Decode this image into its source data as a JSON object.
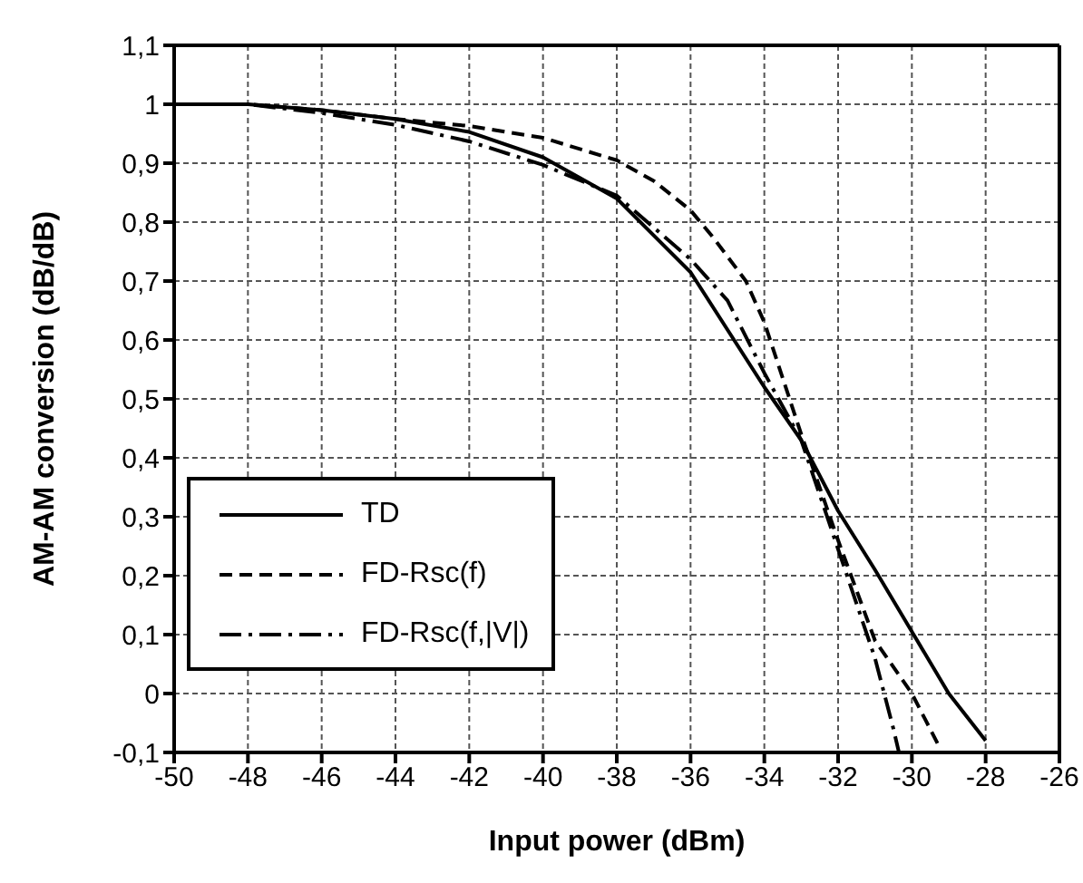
{
  "chart_data": {
    "type": "line",
    "xlabel": "Input power (dBm)",
    "ylabel": "AM-AM conversion (dB/dB)",
    "xlim": [
      -50,
      -26
    ],
    "xticks": [
      -50,
      -48,
      -46,
      -44,
      -42,
      -40,
      -38,
      -36,
      -34,
      -32,
      -30,
      -28,
      -26
    ],
    "ylim": [
      -0.1,
      1.1
    ],
    "yticks": [
      {
        "value": -0.1,
        "label": "-0,1"
      },
      0,
      {
        "value": 0.1,
        "label": "0,1"
      },
      {
        "value": 0.2,
        "label": "0,2"
      },
      {
        "value": 0.3,
        "label": "0,3"
      },
      {
        "value": 0.4,
        "label": "0,4"
      },
      {
        "value": 0.5,
        "label": "0,5"
      },
      {
        "value": 0.6,
        "label": "0,6"
      },
      {
        "value": 0.7,
        "label": "0,7"
      },
      {
        "value": 0.8,
        "label": "0,8"
      },
      {
        "value": 0.9,
        "label": "0,9"
      },
      1,
      {
        "value": 1.1,
        "label": "1,1"
      }
    ],
    "grid": true,
    "legend": "bottom left",
    "marker": "none",
    "series": [
      {
        "name": "TD",
        "color": "#000000",
        "line_style": "solid",
        "x": [
          -50,
          -48,
          -46,
          -44,
          -42,
          -40,
          -38,
          -36,
          -34,
          -33,
          -32,
          -31,
          -30,
          -29,
          -28
        ],
        "values": [
          1.0,
          1.0,
          0.99,
          0.975,
          0.953,
          0.91,
          0.84,
          0.715,
          0.52,
          0.43,
          0.31,
          0.21,
          0.105,
          0.0,
          -0.08
        ]
      },
      {
        "name": "FD-Rsc(f)",
        "color": "#000000",
        "line_style": "dashed",
        "x": [
          -50,
          -48,
          -46,
          -44,
          -42,
          -40,
          -38,
          -37,
          -36,
          -35.4,
          -34.5,
          -34,
          -33,
          -32,
          -31,
          -30,
          -29.3
        ],
        "values": [
          1.0,
          1.0,
          0.99,
          0.975,
          0.963,
          0.943,
          0.905,
          0.87,
          0.82,
          0.775,
          0.7,
          0.63,
          0.44,
          0.26,
          0.09,
          0.0,
          -0.085
        ]
      },
      {
        "name": "FD-Rsc(f,|V|)",
        "color": "#000000",
        "line_style": "dashdot",
        "x": [
          -50,
          -48,
          -46,
          -44,
          -42,
          -40,
          -38,
          -36,
          -35,
          -34,
          -33,
          -32,
          -31,
          -30.5,
          -30.35
        ],
        "values": [
          1.0,
          1.0,
          0.985,
          0.965,
          0.937,
          0.897,
          0.845,
          0.737,
          0.667,
          0.544,
          0.43,
          0.245,
          0.06,
          -0.06,
          -0.1
        ]
      }
    ]
  }
}
